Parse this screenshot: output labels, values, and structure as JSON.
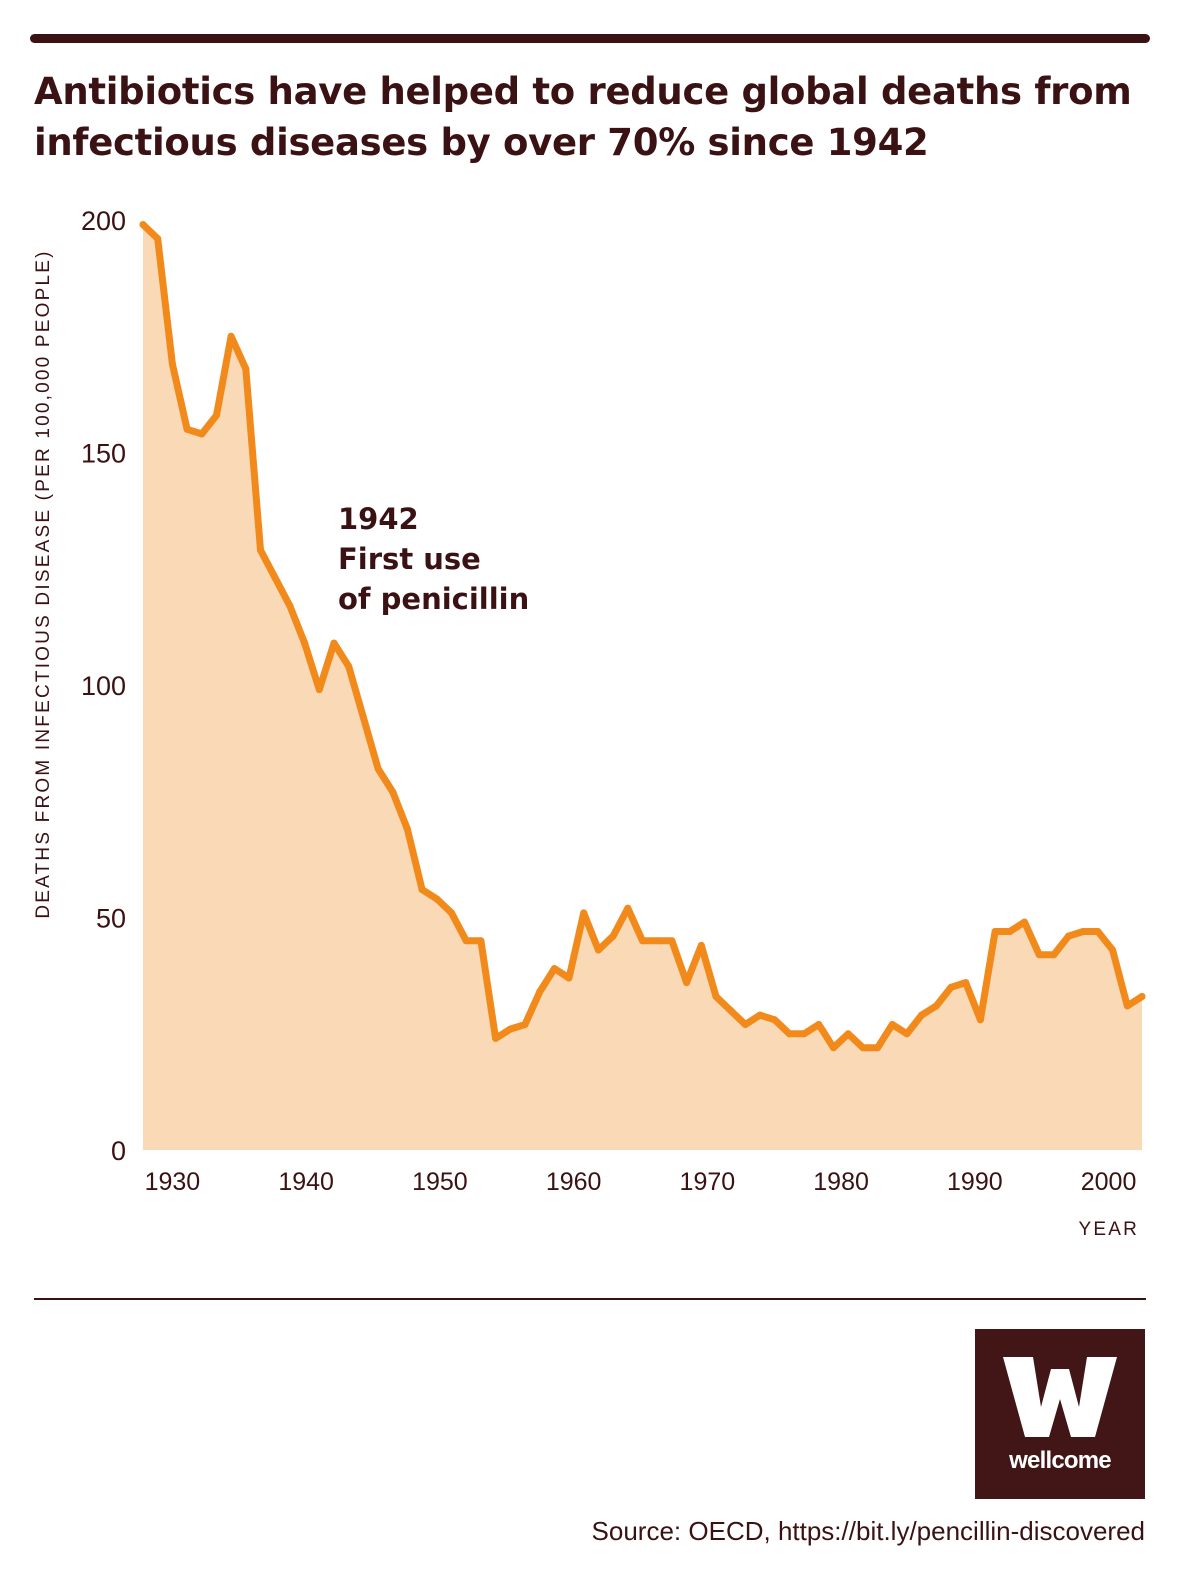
{
  "header": {
    "title_line1": "Antibiotics have helped to reduce global deaths from",
    "title_line2": "infectious diseases by over 70% since 1942"
  },
  "chart_data": {
    "type": "area",
    "ylabel": "DEATHS FROM INFECTIOUS DISEASE (PER 100,000 PEOPLE)",
    "xlabel": "YEAR",
    "xlim": [
      1927.8,
      2002.5
    ],
    "ylim": [
      0,
      200
    ],
    "x_ticks": [
      1930,
      1940,
      1950,
      1960,
      1970,
      1980,
      1990,
      2000
    ],
    "y_ticks": [
      0,
      50,
      100,
      150,
      200
    ],
    "grid": false,
    "legend": "none",
    "line_color": "#f28a1b",
    "fill_color": "#f9d9b6",
    "annotation": {
      "x": 1942,
      "y": 122,
      "lines": [
        "1942",
        "First use",
        "of penicillin"
      ]
    },
    "points": [
      {
        "x": 1928,
        "y": 199
      },
      {
        "x": 1929,
        "y": 196
      },
      {
        "x": 1930,
        "y": 169
      },
      {
        "x": 1931,
        "y": 155
      },
      {
        "x": 1932,
        "y": 154
      },
      {
        "x": 1933,
        "y": 158
      },
      {
        "x": 1934,
        "y": 175
      },
      {
        "x": 1935,
        "y": 168
      },
      {
        "x": 1936,
        "y": 129
      },
      {
        "x": 1937,
        "y": 123
      },
      {
        "x": 1938,
        "y": 117
      },
      {
        "x": 1939,
        "y": 109
      },
      {
        "x": 1940,
        "y": 99
      },
      {
        "x": 1941,
        "y": 109
      },
      {
        "x": 1942,
        "y": 104
      },
      {
        "x": 1943,
        "y": 93
      },
      {
        "x": 1944,
        "y": 82
      },
      {
        "x": 1945,
        "y": 77
      },
      {
        "x": 1946,
        "y": 69
      },
      {
        "x": 1947,
        "y": 56
      },
      {
        "x": 1948,
        "y": 54
      },
      {
        "x": 1949,
        "y": 51
      },
      {
        "x": 1950,
        "y": 45
      },
      {
        "x": 1951,
        "y": 45
      },
      {
        "x": 1952,
        "y": 24
      },
      {
        "x": 1953,
        "y": 26
      },
      {
        "x": 1954,
        "y": 27
      },
      {
        "x": 1955,
        "y": 34
      },
      {
        "x": 1956,
        "y": 39
      },
      {
        "x": 1957,
        "y": 37
      },
      {
        "x": 1958,
        "y": 51
      },
      {
        "x": 1959,
        "y": 43
      },
      {
        "x": 1960,
        "y": 46
      },
      {
        "x": 1961,
        "y": 52
      },
      {
        "x": 1962,
        "y": 45
      },
      {
        "x": 1963,
        "y": 45
      },
      {
        "x": 1964,
        "y": 45
      },
      {
        "x": 1965,
        "y": 36
      },
      {
        "x": 1966,
        "y": 44
      },
      {
        "x": 1967,
        "y": 33
      },
      {
        "x": 1968,
        "y": 30
      },
      {
        "x": 1969,
        "y": 27
      },
      {
        "x": 1970,
        "y": 29
      },
      {
        "x": 1971,
        "y": 28
      },
      {
        "x": 1972,
        "y": 25
      },
      {
        "x": 1973,
        "y": 25
      },
      {
        "x": 1974,
        "y": 27
      },
      {
        "x": 1975,
        "y": 22
      },
      {
        "x": 1976,
        "y": 25
      },
      {
        "x": 1977,
        "y": 22
      },
      {
        "x": 1978,
        "y": 22
      },
      {
        "x": 1979,
        "y": 27
      },
      {
        "x": 1980,
        "y": 25
      },
      {
        "x": 1981,
        "y": 29
      },
      {
        "x": 1982,
        "y": 31
      },
      {
        "x": 1983,
        "y": 35
      },
      {
        "x": 1984,
        "y": 36
      },
      {
        "x": 1985,
        "y": 28
      },
      {
        "x": 1986,
        "y": 47
      },
      {
        "x": 1987,
        "y": 47
      },
      {
        "x": 1988,
        "y": 49
      },
      {
        "x": 1989,
        "y": 42
      },
      {
        "x": 1990,
        "y": 42
      },
      {
        "x": 1991,
        "y": 46
      },
      {
        "x": 1992,
        "y": 47
      },
      {
        "x": 1993,
        "y": 47
      },
      {
        "x": 1994,
        "y": 43
      },
      {
        "x": 1995,
        "y": 31
      },
      {
        "x": 1996,
        "y": 33
      }
    ]
  },
  "brand": {
    "logo_letter": "W",
    "logo_word": "wellcome"
  },
  "footer": {
    "source": "Source: OECD, https://bit.ly/pencillin-discovered"
  }
}
